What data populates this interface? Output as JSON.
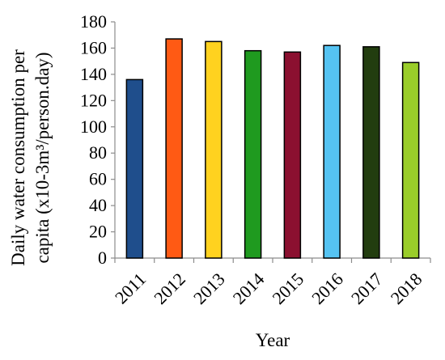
{
  "chart_data": {
    "type": "bar",
    "categories": [
      "2011",
      "2012",
      "2013",
      "2014",
      "2015",
      "2016",
      "2017",
      "2018"
    ],
    "values": [
      136,
      167,
      165,
      158,
      157,
      162,
      161,
      149
    ],
    "colors": [
      "#1f4e8c",
      "#ff5a14",
      "#ffd21f",
      "#1f9a1f",
      "#8b1030",
      "#55c3f2",
      "#223d0f",
      "#9acd2a"
    ],
    "bar_outline": "#000000",
    "xlabel": "Year",
    "ylabel_line1": "Daily water consumption per",
    "ylabel_line2": "capita (x10-3m³/person.day)",
    "ylim": [
      0,
      180
    ],
    "yticks": [
      "0",
      "20",
      "40",
      "60",
      "80",
      "100",
      "120",
      "140",
      "160",
      "180"
    ],
    "grid": false,
    "legend": "none"
  }
}
